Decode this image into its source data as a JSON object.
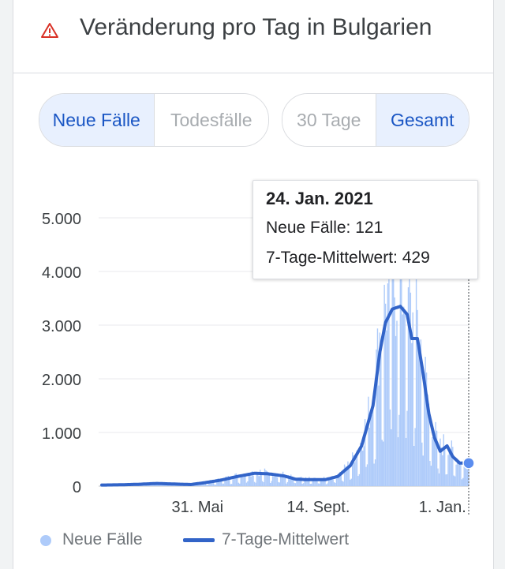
{
  "header": {
    "title": "Veränderung pro Tag in Bulgarien",
    "icon": "warning-icon"
  },
  "toggles": {
    "metric": {
      "options": [
        "Neue Fälle",
        "Todesfälle"
      ],
      "selected": "Neue Fälle"
    },
    "range": {
      "options": [
        "30 Tage",
        "Gesamt"
      ],
      "selected": "Gesamt"
    }
  },
  "tooltip": {
    "date": "24. Jan. 2021",
    "line1": "Neue Fälle: 121",
    "line2": "7-Tage-Mittelwert: 429"
  },
  "legend": {
    "bars": "Neue Fälle",
    "line": "7-Tage-Mittelwert"
  },
  "colors": {
    "bars": "#aecbfa",
    "line": "#3264c8",
    "accent": "#1a56c4",
    "warning": "#d93025"
  },
  "chart_data": {
    "type": "bar",
    "ylim": [
      0,
      5000
    ],
    "yticks": [
      "0",
      "1.000",
      "2.000",
      "3.000",
      "4.000",
      "5.000"
    ],
    "xticks": [
      "31. Mai",
      "14. Sept.",
      "1. Jan."
    ],
    "x_start": "2020-03-08",
    "x_end": "2021-01-24",
    "series": [
      {
        "name": "7-Tage-Mittelwert",
        "type": "line",
        "points": [
          [
            "2020-03-08",
            20
          ],
          [
            "2020-03-25",
            25
          ],
          [
            "2020-04-10",
            35
          ],
          [
            "2020-04-25",
            50
          ],
          [
            "2020-05-10",
            40
          ],
          [
            "2020-05-25",
            30
          ],
          [
            "2020-06-05",
            60
          ],
          [
            "2020-06-20",
            110
          ],
          [
            "2020-07-05",
            180
          ],
          [
            "2020-07-20",
            240
          ],
          [
            "2020-08-01",
            230
          ],
          [
            "2020-08-15",
            190
          ],
          [
            "2020-08-25",
            130
          ],
          [
            "2020-09-05",
            120
          ],
          [
            "2020-09-20",
            120
          ],
          [
            "2020-10-01",
            180
          ],
          [
            "2020-10-12",
            380
          ],
          [
            "2020-10-22",
            750
          ],
          [
            "2020-11-01",
            1500
          ],
          [
            "2020-11-07",
            2500
          ],
          [
            "2020-11-12",
            3050
          ],
          [
            "2020-11-18",
            3300
          ],
          [
            "2020-11-25",
            3350
          ],
          [
            "2020-12-01",
            3200
          ],
          [
            "2020-12-05",
            2750
          ],
          [
            "2020-12-10",
            2750
          ],
          [
            "2020-12-15",
            2100
          ],
          [
            "2020-12-20",
            1350
          ],
          [
            "2020-12-25",
            900
          ],
          [
            "2020-12-30",
            650
          ],
          [
            "2021-01-05",
            750
          ],
          [
            "2021-01-10",
            550
          ],
          [
            "2021-01-16",
            430
          ],
          [
            "2021-01-24",
            429
          ]
        ]
      },
      {
        "name": "Neue Fälle",
        "type": "bar",
        "daily": "approximate daily bars around the 7-day average"
      }
    ],
    "highlight": {
      "date": "2021-01-24",
      "new_cases": 121,
      "avg7": 429
    }
  }
}
